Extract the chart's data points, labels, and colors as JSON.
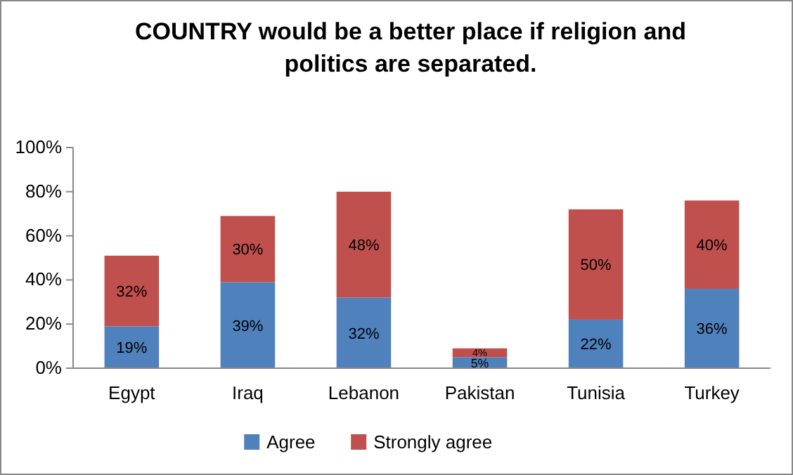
{
  "chart_data": {
    "type": "bar",
    "stacked": true,
    "title": "COUNTRY would be a better place if religion and politics are separated.",
    "categories": [
      "Egypt",
      "Iraq",
      "Lebanon",
      "Pakistan",
      "Tunisia",
      "Turkey"
    ],
    "series": [
      {
        "name": "Agree",
        "color": "#4f81bd",
        "values": [
          19,
          39,
          32,
          5,
          22,
          36
        ],
        "value_labels": [
          "19%",
          "39%",
          "32%",
          "5%",
          "22%",
          "36%"
        ]
      },
      {
        "name": "Strongly agree",
        "color": "#c0504d",
        "values": [
          32,
          30,
          48,
          4,
          50,
          40
        ],
        "value_labels": [
          "32%",
          "30%",
          "48%",
          "4%",
          "50%",
          "40%"
        ]
      }
    ],
    "ylim": [
      0,
      100
    ],
    "yticks": [
      {
        "value": 0,
        "label": "0%"
      },
      {
        "value": 20,
        "label": "20%"
      },
      {
        "value": 40,
        "label": "40%"
      },
      {
        "value": 60,
        "label": "60%"
      },
      {
        "value": 80,
        "label": "80%"
      },
      {
        "value": 100,
        "label": "100%"
      }
    ],
    "legend": "bottom"
  }
}
